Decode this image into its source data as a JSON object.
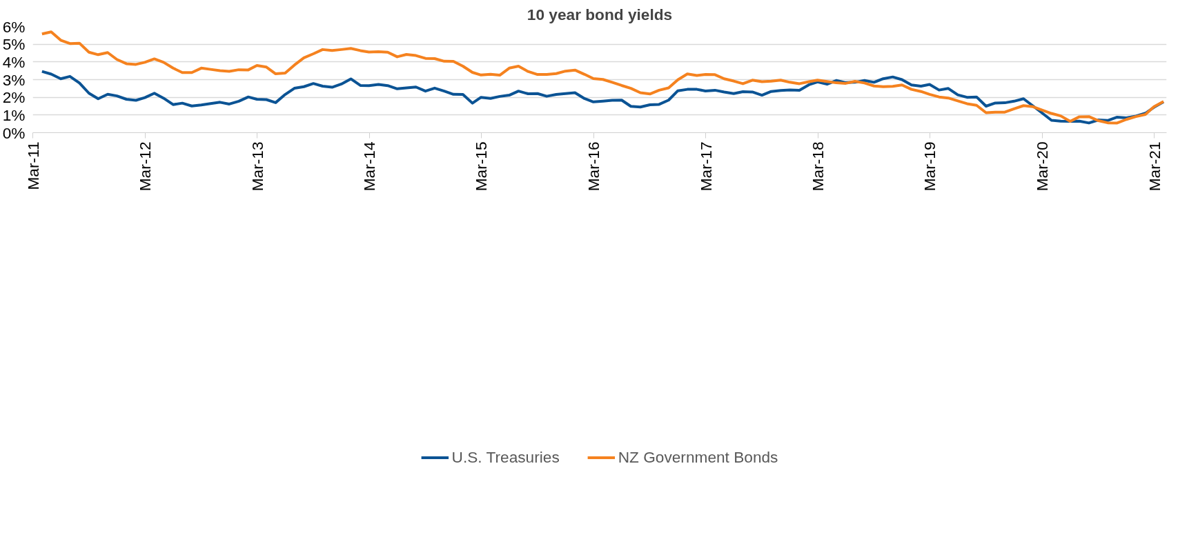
{
  "chart_data": {
    "type": "line",
    "title": "10 year bond yields",
    "x": [
      "2011-03-31",
      "2011-04-30",
      "2011-05-31",
      "2011-06-30",
      "2011-07-31",
      "2011-08-31",
      "2011-09-30",
      "2011-10-31",
      "2011-11-30",
      "2011-12-31",
      "2012-01-31",
      "2012-02-29",
      "2012-03-31",
      "2012-04-30",
      "2012-05-31",
      "2012-06-30",
      "2012-07-31",
      "2012-08-31",
      "2012-09-30",
      "2012-10-31",
      "2012-11-30",
      "2012-12-31",
      "2013-01-31",
      "2013-02-28",
      "2013-03-31",
      "2013-04-30",
      "2013-05-31",
      "2013-06-30",
      "2013-07-31",
      "2013-08-31",
      "2013-09-30",
      "2013-10-31",
      "2013-11-30",
      "2013-12-31",
      "2014-01-31",
      "2014-02-28",
      "2014-03-31",
      "2014-04-30",
      "2014-05-31",
      "2014-06-30",
      "2014-07-31",
      "2014-08-31",
      "2014-09-30",
      "2014-10-31",
      "2014-11-30",
      "2014-12-31",
      "2015-01-31",
      "2015-02-28",
      "2015-03-31",
      "2015-04-30",
      "2015-05-31",
      "2015-06-30",
      "2015-07-31",
      "2015-08-31",
      "2015-09-30",
      "2015-10-31",
      "2015-11-30",
      "2015-12-31",
      "2016-01-31",
      "2016-02-29",
      "2016-03-31",
      "2016-04-30",
      "2016-05-31",
      "2016-06-30",
      "2016-07-31",
      "2016-08-31",
      "2016-09-30",
      "2016-10-31",
      "2016-11-30",
      "2016-12-31",
      "2017-01-31",
      "2017-02-28",
      "2017-03-31",
      "2017-04-30",
      "2017-05-31",
      "2017-06-30",
      "2017-07-31",
      "2017-08-31",
      "2017-09-30",
      "2017-10-31",
      "2017-11-30",
      "2017-12-31",
      "2018-01-31",
      "2018-02-28",
      "2018-03-31",
      "2018-04-30",
      "2018-05-31",
      "2018-06-30",
      "2018-07-31",
      "2018-08-31",
      "2018-09-30",
      "2018-10-31",
      "2018-11-30",
      "2018-12-31",
      "2019-01-31",
      "2019-02-28",
      "2019-03-31",
      "2019-04-30",
      "2019-05-31",
      "2019-06-30",
      "2019-07-31",
      "2019-08-31",
      "2019-09-30",
      "2019-10-31",
      "2019-11-30",
      "2019-12-31",
      "2020-01-31",
      "2020-02-29",
      "2020-03-31",
      "2020-04-30",
      "2020-05-31",
      "2020-06-30",
      "2020-07-31",
      "2020-08-31",
      "2020-09-30",
      "2020-10-31",
      "2020-11-30",
      "2020-12-31",
      "2021-01-31",
      "2021-02-28",
      "2021-03-31"
    ],
    "series": [
      {
        "name": "U.S. Treasuries",
        "color": "#0b5394",
        "values": [
          3.46,
          3.31,
          3.05,
          3.18,
          2.81,
          2.23,
          1.92,
          2.17,
          2.08,
          1.89,
          1.83,
          1.98,
          2.23,
          1.95,
          1.59,
          1.67,
          1.51,
          1.57,
          1.65,
          1.72,
          1.62,
          1.78,
          2.02,
          1.89,
          1.87,
          1.7,
          2.16,
          2.51,
          2.6,
          2.78,
          2.63,
          2.57,
          2.75,
          3.04,
          2.67,
          2.66,
          2.73,
          2.66,
          2.48,
          2.53,
          2.58,
          2.35,
          2.52,
          2.35,
          2.17,
          2.16,
          1.67,
          2.0,
          1.94,
          2.05,
          2.12,
          2.35,
          2.2,
          2.21,
          2.06,
          2.16,
          2.21,
          2.26,
          1.93,
          1.74,
          1.78,
          1.83,
          1.84,
          1.49,
          1.45,
          1.58,
          1.6,
          1.84,
          2.37,
          2.45,
          2.45,
          2.36,
          2.4,
          2.3,
          2.21,
          2.32,
          2.3,
          2.12,
          2.33,
          2.39,
          2.42,
          2.4,
          2.71,
          2.87,
          2.74,
          2.95,
          2.83,
          2.85,
          2.95,
          2.85,
          3.05,
          3.15,
          3.0,
          2.7,
          2.63,
          2.73,
          2.41,
          2.5,
          2.14,
          2.0,
          2.02,
          1.5,
          1.68,
          1.69,
          1.78,
          1.92,
          1.51,
          1.12,
          0.7,
          0.65,
          0.64,
          0.65,
          0.55,
          0.72,
          0.69,
          0.88,
          0.84,
          0.94,
          1.1,
          1.44,
          1.74
        ]
      },
      {
        "name": "NZ Government Bonds",
        "color": "#f5821f",
        "values": [
          5.58,
          5.7,
          5.23,
          5.04,
          5.06,
          4.55,
          4.41,
          4.53,
          4.14,
          3.9,
          3.86,
          3.98,
          4.17,
          3.98,
          3.65,
          3.4,
          3.4,
          3.65,
          3.58,
          3.51,
          3.47,
          3.56,
          3.55,
          3.8,
          3.71,
          3.33,
          3.37,
          3.82,
          4.23,
          4.46,
          4.7,
          4.65,
          4.7,
          4.76,
          4.64,
          4.56,
          4.58,
          4.55,
          4.29,
          4.42,
          4.36,
          4.2,
          4.19,
          4.04,
          4.03,
          3.76,
          3.41,
          3.26,
          3.3,
          3.25,
          3.65,
          3.76,
          3.46,
          3.29,
          3.29,
          3.34,
          3.48,
          3.54,
          3.3,
          3.06,
          3.01,
          2.85,
          2.67,
          2.51,
          2.26,
          2.19,
          2.4,
          2.53,
          2.99,
          3.32,
          3.23,
          3.29,
          3.28,
          3.05,
          2.92,
          2.77,
          2.97,
          2.88,
          2.91,
          2.97,
          2.85,
          2.77,
          2.88,
          2.97,
          2.89,
          2.82,
          2.79,
          2.9,
          2.81,
          2.64,
          2.6,
          2.62,
          2.7,
          2.45,
          2.33,
          2.17,
          2.02,
          1.96,
          1.8,
          1.64,
          1.55,
          1.13,
          1.16,
          1.16,
          1.35,
          1.53,
          1.47,
          1.28,
          1.09,
          0.95,
          0.64,
          0.9,
          0.91,
          0.68,
          0.56,
          0.55,
          0.75,
          0.91,
          1.03,
          1.47,
          1.76
        ]
      }
    ],
    "xlim": [
      "2011-03-01",
      "2021-04-10"
    ],
    "xticks": [
      {
        "value": "2011-03-01",
        "label": "Mar-11"
      },
      {
        "value": "2012-03-01",
        "label": "Mar-12"
      },
      {
        "value": "2013-03-01",
        "label": "Mar-13"
      },
      {
        "value": "2014-03-01",
        "label": "Mar-14"
      },
      {
        "value": "2015-03-01",
        "label": "Mar-15"
      },
      {
        "value": "2016-03-01",
        "label": "Mar-16"
      },
      {
        "value": "2017-03-01",
        "label": "Mar-17"
      },
      {
        "value": "2018-03-01",
        "label": "Mar-18"
      },
      {
        "value": "2019-03-01",
        "label": "Mar-19"
      },
      {
        "value": "2020-03-01",
        "label": "Mar-20"
      },
      {
        "value": "2021-03-01",
        "label": "Mar-21"
      }
    ],
    "ylim": [
      0,
      6
    ],
    "yticks": [
      {
        "value": 0,
        "label": "0%"
      },
      {
        "value": 1,
        "label": "1%"
      },
      {
        "value": 2,
        "label": "2%"
      },
      {
        "value": 3,
        "label": "3%"
      },
      {
        "value": 4,
        "label": "4%"
      },
      {
        "value": 5,
        "label": "5%"
      },
      {
        "value": 6,
        "label": "6%"
      }
    ],
    "grid": "y",
    "legend": "bottom",
    "marker": "none",
    "line_style": "solid"
  }
}
